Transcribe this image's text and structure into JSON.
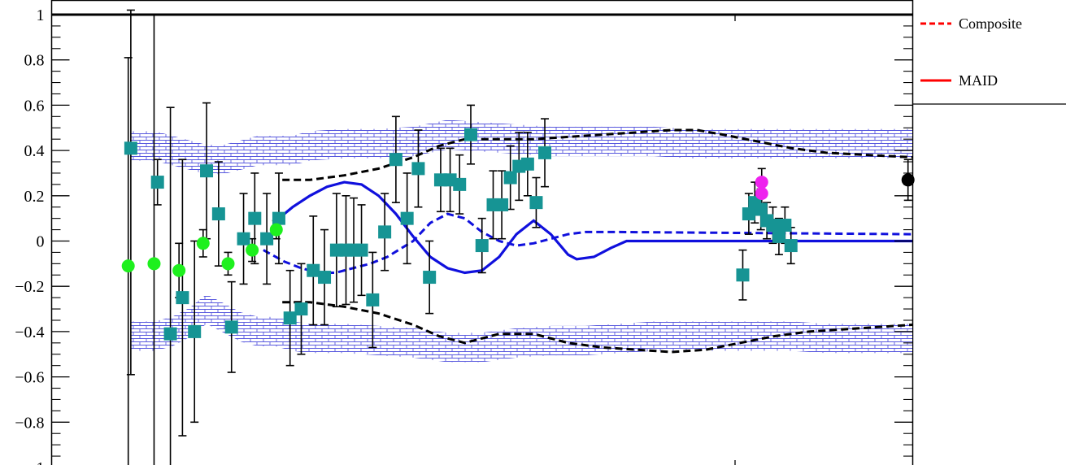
{
  "chart_data": {
    "type": "scatter",
    "title": "",
    "xlabel": "",
    "ylabel": "",
    "ylim": [
      -1,
      1
    ],
    "xlim": [
      0,
      100
    ],
    "y_ticks": [
      1,
      0.8,
      0.6,
      0.4,
      0.2,
      0,
      -0.2,
      -0.4,
      -0.6,
      -0.8,
      -1
    ],
    "y_tick_labels": [
      "1",
      "0.8",
      "0.6",
      "0.4",
      "0.2",
      "0",
      "−0.2",
      "−0.4",
      "−0.6",
      "−0.8",
      "−1"
    ],
    "grid": false,
    "legend": {
      "placement": "top-right",
      "entries": [
        {
          "label": "Composite",
          "style": "dashed",
          "color": "#ff0000"
        },
        {
          "label": "MAID",
          "style": "solid",
          "color": "#ff0000"
        }
      ]
    },
    "colors": {
      "band": "#3333dd",
      "maid_blue": "#1010dd",
      "composite_black": "#000000",
      "teal": "#169494",
      "green": "#1ef01e",
      "magenta": "#ee22ee",
      "black_point": "#000000",
      "error": "#000000"
    },
    "series": [
      {
        "kind": "teal-squares",
        "points": [
          {
            "x": 9.2,
            "y": 0.41,
            "e": 1.0
          },
          {
            "x": 12.3,
            "y": 0.26,
            "e": 0.1
          },
          {
            "x": 13.8,
            "y": -0.41,
            "e": 1.0
          },
          {
            "x": 15.2,
            "y": -0.25,
            "e": 0.61
          },
          {
            "x": 16.6,
            "y": -0.4,
            "e": 0.4
          },
          {
            "x": 18.0,
            "y": 0.31,
            "e": 0.3
          },
          {
            "x": 19.4,
            "y": 0.12,
            "e": 0.23
          },
          {
            "x": 20.9,
            "y": -0.38,
            "e": 0.2
          },
          {
            "x": 22.3,
            "y": 0.01,
            "e": 0.2
          },
          {
            "x": 23.6,
            "y": 0.1,
            "e": 0.2
          },
          {
            "x": 25.0,
            "y": 0.01,
            "e": 0.2
          },
          {
            "x": 26.4,
            "y": 0.1,
            "e": 0.2
          },
          {
            "x": 27.7,
            "y": -0.34,
            "e": 0.21
          },
          {
            "x": 29.0,
            "y": -0.3,
            "e": 0.2
          },
          {
            "x": 30.4,
            "y": -0.13,
            "e": 0.24
          },
          {
            "x": 31.7,
            "y": -0.16,
            "e": 0.21
          },
          {
            "x": 33.1,
            "y": -0.04,
            "e": 0.25
          },
          {
            "x": 34.2,
            "y": -0.04,
            "e": 0.24
          },
          {
            "x": 35.1,
            "y": -0.04,
            "e": 0.23
          },
          {
            "x": 36.0,
            "y": -0.04,
            "e": 0.2
          },
          {
            "x": 37.3,
            "y": -0.26,
            "e": 0.21
          },
          {
            "x": 38.7,
            "y": 0.04,
            "e": 0.17
          },
          {
            "x": 40.0,
            "y": 0.36,
            "e": 0.19
          },
          {
            "x": 41.3,
            "y": 0.1,
            "e": 0.2
          },
          {
            "x": 42.6,
            "y": 0.32,
            "e": 0.17
          },
          {
            "x": 43.9,
            "y": -0.16,
            "e": 0.16
          },
          {
            "x": 45.2,
            "y": 0.27,
            "e": 0.14
          },
          {
            "x": 46.3,
            "y": 0.27,
            "e": 0.14
          },
          {
            "x": 47.4,
            "y": 0.25,
            "e": 0.13
          },
          {
            "x": 48.7,
            "y": 0.47,
            "e": 0.13
          },
          {
            "x": 50.0,
            "y": -0.02,
            "e": 0.12
          },
          {
            "x": 51.3,
            "y": 0.16,
            "e": 0.15
          },
          {
            "x": 52.3,
            "y": 0.16,
            "e": 0.15
          },
          {
            "x": 53.3,
            "y": 0.28,
            "e": 0.14
          },
          {
            "x": 54.3,
            "y": 0.33,
            "e": 0.15
          },
          {
            "x": 55.3,
            "y": 0.34,
            "e": 0.14
          },
          {
            "x": 56.3,
            "y": 0.17,
            "e": 0.11
          },
          {
            "x": 57.3,
            "y": 0.39,
            "e": 0.15
          },
          {
            "x": 80.3,
            "y": -0.15,
            "e": 0.11
          },
          {
            "x": 81.0,
            "y": 0.12,
            "e": 0.09
          },
          {
            "x": 81.7,
            "y": 0.17,
            "e": 0.09
          },
          {
            "x": 82.4,
            "y": 0.14,
            "e": 0.09
          },
          {
            "x": 83.1,
            "y": 0.09,
            "e": 0.08
          },
          {
            "x": 83.8,
            "y": 0.07,
            "e": 0.08
          },
          {
            "x": 84.5,
            "y": 0.02,
            "e": 0.08
          },
          {
            "x": 85.2,
            "y": 0.07,
            "e": 0.08
          },
          {
            "x": 85.9,
            "y": -0.02,
            "e": 0.08
          }
        ]
      },
      {
        "kind": "green-circles",
        "points": [
          {
            "x": 8.9,
            "y": -0.11,
            "e": 0.92
          },
          {
            "x": 11.9,
            "y": -0.1,
            "e": 1.1
          },
          {
            "x": 14.8,
            "y": -0.13,
            "e": 0.12
          },
          {
            "x": 17.6,
            "y": -0.01,
            "e": 0.06
          },
          {
            "x": 20.5,
            "y": -0.1,
            "e": 0.05
          },
          {
            "x": 23.3,
            "y": -0.04,
            "e": 0.05
          },
          {
            "x": 26.1,
            "y": 0.05,
            "e": 0.04
          }
        ]
      },
      {
        "kind": "magenta-circles",
        "points": [
          {
            "x": 82.5,
            "y": 0.26,
            "e": 0.06
          },
          {
            "x": 82.5,
            "y": 0.21,
            "e": 0.05
          }
        ]
      },
      {
        "kind": "black-circle",
        "points": [
          {
            "x": 99.5,
            "y": 0.27,
            "e": 0.09
          }
        ]
      }
    ],
    "curves": {
      "maid_solid": [
        [
          26.4,
          0.1
        ],
        [
          28,
          0.15
        ],
        [
          30,
          0.2
        ],
        [
          32,
          0.24
        ],
        [
          34,
          0.26
        ],
        [
          36,
          0.25
        ],
        [
          38,
          0.2
        ],
        [
          40,
          0.12
        ],
        [
          42,
          0.02
        ],
        [
          44,
          -0.07
        ],
        [
          46,
          -0.12
        ],
        [
          48,
          -0.14
        ],
        [
          50,
          -0.13
        ],
        [
          52,
          -0.07
        ],
        [
          54,
          0.03
        ],
        [
          56,
          0.09
        ],
        [
          58,
          0.03
        ],
        [
          60,
          -0.06
        ],
        [
          61,
          -0.08
        ],
        [
          63,
          -0.07
        ],
        [
          65,
          -0.03
        ],
        [
          66.8,
          0.0
        ],
        [
          100,
          0.0
        ]
      ],
      "composite_blue": [
        [
          24.6,
          -0.04
        ],
        [
          27,
          -0.09
        ],
        [
          29,
          -0.12
        ],
        [
          31,
          -0.14
        ],
        [
          33,
          -0.14
        ],
        [
          35,
          -0.12
        ],
        [
          37,
          -0.1
        ],
        [
          39,
          -0.07
        ],
        [
          42,
          0.0
        ],
        [
          44,
          0.08
        ],
        [
          46,
          0.12
        ],
        [
          48,
          0.1
        ],
        [
          50,
          0.04
        ],
        [
          52,
          0.0
        ],
        [
          54,
          -0.02
        ],
        [
          56,
          -0.01
        ],
        [
          58,
          0.01
        ],
        [
          60,
          0.03
        ],
        [
          62,
          0.04
        ],
        [
          66,
          0.04
        ],
        [
          100,
          0.03
        ]
      ],
      "black_upper": [
        [
          26.8,
          0.27
        ],
        [
          30,
          0.27
        ],
        [
          34,
          0.29
        ],
        [
          38,
          0.32
        ],
        [
          42,
          0.37
        ],
        [
          45,
          0.42
        ],
        [
          48,
          0.45
        ],
        [
          52,
          0.45
        ],
        [
          56,
          0.45
        ],
        [
          60,
          0.46
        ],
        [
          64,
          0.47
        ],
        [
          68,
          0.48
        ],
        [
          72,
          0.49
        ],
        [
          75,
          0.49
        ],
        [
          78,
          0.47
        ],
        [
          82,
          0.44
        ],
        [
          86,
          0.41
        ],
        [
          90,
          0.39
        ],
        [
          95,
          0.38
        ],
        [
          100,
          0.37
        ]
      ],
      "black_lower": [
        [
          26.8,
          -0.27
        ],
        [
          30,
          -0.27
        ],
        [
          34,
          -0.29
        ],
        [
          38,
          -0.32
        ],
        [
          42,
          -0.37
        ],
        [
          45,
          -0.42
        ],
        [
          48,
          -0.45
        ],
        [
          52,
          -0.41
        ],
        [
          56,
          -0.41
        ],
        [
          60,
          -0.45
        ],
        [
          64,
          -0.47
        ],
        [
          68,
          -0.48
        ],
        [
          72,
          -0.49
        ],
        [
          76,
          -0.48
        ],
        [
          80,
          -0.45
        ],
        [
          84,
          -0.42
        ],
        [
          88,
          -0.4
        ],
        [
          92,
          -0.39
        ],
        [
          96,
          -0.38
        ],
        [
          100,
          -0.37
        ]
      ],
      "band_upper": [
        [
          9.2,
          0.42
        ],
        [
          12,
          0.42
        ],
        [
          14,
          0.4
        ],
        [
          16,
          0.38
        ],
        [
          18,
          0.36
        ],
        [
          20,
          0.36
        ],
        [
          22,
          0.38
        ],
        [
          24,
          0.4
        ],
        [
          26,
          0.4
        ],
        [
          28,
          0.4
        ],
        [
          30,
          0.42
        ],
        [
          34,
          0.43
        ],
        [
          38,
          0.43
        ],
        [
          42,
          0.44
        ],
        [
          46,
          0.47
        ],
        [
          50,
          0.46
        ],
        [
          54,
          0.45
        ],
        [
          58,
          0.44
        ],
        [
          62,
          0.44
        ],
        [
          66,
          0.44
        ],
        [
          70,
          0.44
        ],
        [
          74,
          0.43
        ],
        [
          78,
          0.43
        ],
        [
          82,
          0.43
        ],
        [
          86,
          0.43
        ],
        [
          90,
          0.43
        ],
        [
          95,
          0.43
        ],
        [
          100,
          0.43
        ]
      ],
      "band_lower": [
        [
          9.2,
          -0.42
        ],
        [
          12,
          -0.42
        ],
        [
          14,
          -0.4
        ],
        [
          16,
          -0.36
        ],
        [
          18,
          -0.3
        ],
        [
          20,
          -0.34
        ],
        [
          22,
          -0.38
        ],
        [
          24,
          -0.4
        ],
        [
          26,
          -0.4
        ],
        [
          28,
          -0.42
        ],
        [
          30,
          -0.43
        ],
        [
          34,
          -0.43
        ],
        [
          38,
          -0.44
        ],
        [
          42,
          -0.45
        ],
        [
          46,
          -0.47
        ],
        [
          50,
          -0.47
        ],
        [
          54,
          -0.45
        ],
        [
          58,
          -0.44
        ],
        [
          62,
          -0.44
        ],
        [
          66,
          -0.43
        ],
        [
          70,
          -0.42
        ],
        [
          74,
          -0.42
        ],
        [
          78,
          -0.42
        ],
        [
          82,
          -0.42
        ],
        [
          86,
          -0.42
        ],
        [
          90,
          -0.43
        ],
        [
          95,
          -0.43
        ],
        [
          100,
          -0.43
        ]
      ]
    }
  }
}
